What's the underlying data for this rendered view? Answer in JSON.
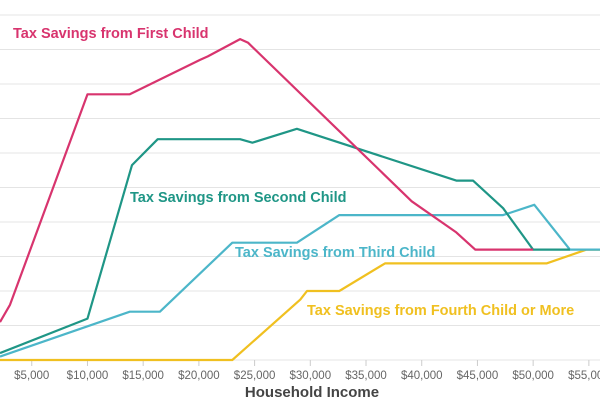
{
  "chart_data": {
    "type": "line",
    "title": "",
    "xlabel": "Household Income",
    "ylabel": "",
    "xlim": [
      2150,
      56000
    ],
    "ylim": [
      0,
      10
    ],
    "grid": true,
    "x_ticks": [
      5000,
      10000,
      15000,
      20000,
      25000,
      30000,
      35000,
      40000,
      45000,
      50000,
      55000
    ],
    "x_tick_labels": [
      "$5,000",
      "$10,000",
      "$15,000",
      "$20,000",
      "$25,000",
      "$30,000",
      "$35,000",
      "$40,000",
      "$45,000",
      "$50,000",
      "$55,000"
    ],
    "legend": "inline labels",
    "series": [
      {
        "name": "Tax Savings from First Child",
        "color": "#d8346e",
        "x": [
          2150,
          3050,
          10000,
          13800,
          20100,
          20800,
          23700,
          24400,
          39100,
          43100,
          44800,
          50000
        ],
        "y": [
          1.1,
          1.6,
          7.7,
          7.7,
          8.7,
          8.8,
          9.3,
          9.2,
          4.6,
          3.7,
          3.2,
          3.2
        ]
      },
      {
        "name": "Tax Savings from Second Child",
        "color": "#1f9686",
        "x": [
          2150,
          10000,
          14000,
          16300,
          23700,
          24800,
          28800,
          43100,
          44600,
          47300,
          50000,
          53300
        ],
        "y": [
          0.2,
          1.2,
          5.65,
          6.4,
          6.4,
          6.3,
          6.7,
          5.2,
          5.2,
          4.4,
          3.2,
          3.2
        ]
      },
      {
        "name": "Tax Savings from Third Child",
        "color": "#4cb6c9",
        "x": [
          2150,
          13800,
          16500,
          23000,
          28800,
          32600,
          47300,
          50100,
          53300,
          56000
        ],
        "y": [
          0.1,
          1.4,
          1.4,
          3.4,
          3.4,
          4.2,
          4.2,
          4.5,
          3.2,
          3.2
        ]
      },
      {
        "name": "Tax Savings from Fourth Child or More",
        "color": "#f0c020",
        "x": [
          2150,
          23000,
          29100,
          29700,
          32600,
          36700,
          51200,
          54800,
          56000
        ],
        "y": [
          0,
          0,
          1.75,
          2.0,
          2.0,
          2.8,
          2.8,
          3.2,
          3.2
        ]
      }
    ]
  }
}
